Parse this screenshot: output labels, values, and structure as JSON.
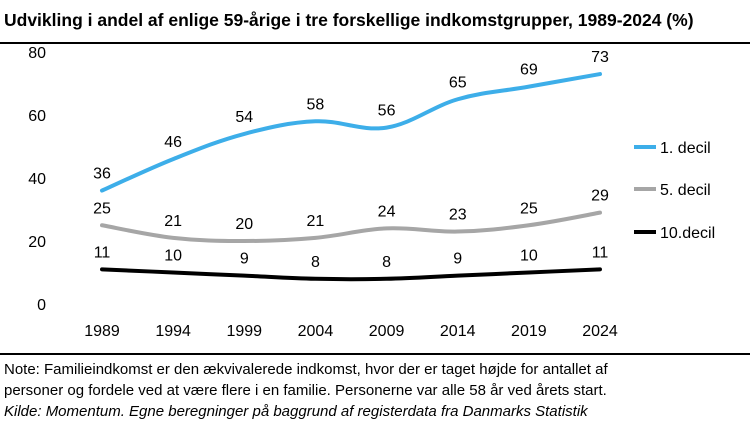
{
  "title": "Udvikling i andel af enlige 59-årige i tre forskellige indkomstgrupper, 1989-2024 (%)",
  "chart_data": {
    "type": "line",
    "title": "Udvikling i andel af enlige 59-årige i tre forskellige indkomstgrupper, 1989-2024 (%)",
    "xlabel": "",
    "ylabel": "",
    "x": [
      "1989",
      "1994",
      "1999",
      "2004",
      "2009",
      "2014",
      "2019",
      "2024"
    ],
    "ylim": [
      0,
      80
    ],
    "yticks": [
      "0",
      "20",
      "40",
      "60",
      "80"
    ],
    "grid": false,
    "legend_position": "right",
    "series": [
      {
        "name": "1. decil",
        "color": "#3daee9",
        "values": [
          36,
          46,
          54,
          58,
          56,
          65,
          69,
          73
        ],
        "labels": [
          "36",
          "46",
          "54",
          "58",
          "56",
          "65",
          "69",
          "73"
        ]
      },
      {
        "name": "5. decil",
        "color": "#a6a6a6",
        "values": [
          25,
          21,
          20,
          21,
          24,
          23,
          25,
          29
        ],
        "labels": [
          "25",
          "21",
          "20",
          "21",
          "24",
          "23",
          "25",
          "29"
        ]
      },
      {
        "name": "10.decil",
        "color": "#000000",
        "values": [
          11,
          10,
          9,
          8,
          8,
          9,
          10,
          11
        ],
        "labels": [
          "11",
          "10",
          "9",
          "8",
          "8",
          "9",
          "10",
          "11"
        ]
      }
    ]
  },
  "notes": {
    "line1": "Note: Familieindkomst er den ækvivalerede indkomst, hvor der er taget højde for antallet af",
    "line2": "personer og fordele ved at være flere i en familie. Personerne var alle 58 år ved årets start.",
    "source": "Kilde: Momentum. Egne beregninger på baggrund af registerdata fra Danmarks Statistik"
  }
}
